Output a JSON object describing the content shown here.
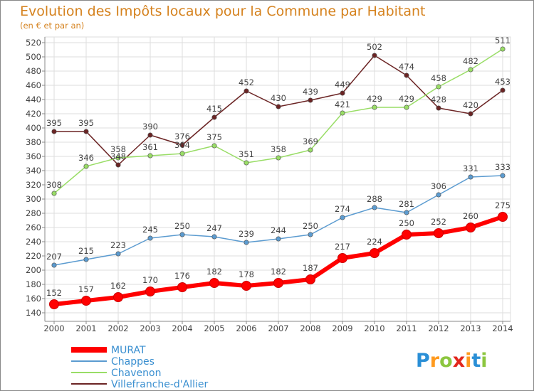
{
  "chart_data": {
    "type": "line",
    "title": "Evolution des Impôts locaux pour la Commune par Habitant",
    "subtitle": "(en € et par an)",
    "xlabel": "",
    "ylabel": "",
    "x": [
      "2000",
      "2001",
      "2002",
      "2003",
      "2004",
      "2005",
      "2006",
      "2007",
      "2008",
      "2009",
      "2010",
      "2011",
      "2012",
      "2013",
      "2014"
    ],
    "ylim": [
      140,
      520
    ],
    "yticks": [
      140,
      160,
      180,
      200,
      220,
      240,
      260,
      280,
      300,
      320,
      340,
      360,
      380,
      400,
      420,
      440,
      460,
      480,
      500,
      520
    ],
    "grid": true,
    "legend_position": "bottom-left",
    "series": [
      {
        "name": "Villefranche-d'Allier",
        "color": "#6b2424",
        "values": [
          395,
          395,
          348,
          390,
          376,
          415,
          452,
          430,
          439,
          449,
          502,
          474,
          428,
          420,
          453
        ]
      },
      {
        "name": "Chavenon",
        "color": "#99dd66",
        "values": [
          308,
          346,
          358,
          361,
          364,
          375,
          351,
          358,
          369,
          421,
          429,
          429,
          458,
          482,
          511
        ]
      },
      {
        "name": "Chappes",
        "color": "#5b9bd0",
        "values": [
          207,
          215,
          223,
          245,
          250,
          247,
          239,
          244,
          250,
          274,
          288,
          281,
          306,
          331,
          333
        ]
      },
      {
        "name": "MURAT",
        "color": "#ff0000",
        "values": [
          152,
          157,
          162,
          170,
          176,
          182,
          178,
          182,
          187,
          217,
          224,
          250,
          252,
          260,
          275
        ]
      }
    ],
    "legend_order": [
      "MURAT",
      "Chappes",
      "Chavenon",
      "Villefranche-d'Allier"
    ]
  },
  "logo_text": "Proxiti"
}
